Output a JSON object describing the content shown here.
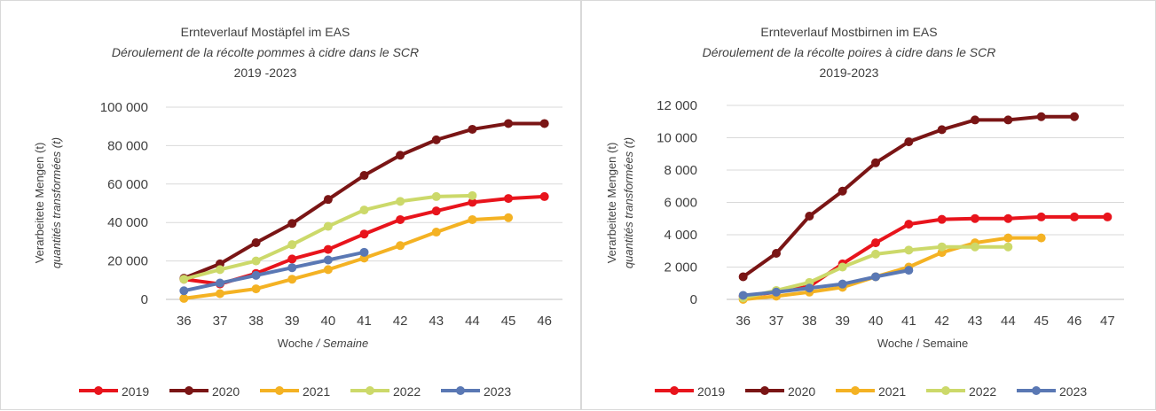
{
  "chart_data": [
    {
      "type": "line",
      "title": "Ernteverlauf Mostäpfel im EAS",
      "subtitle": "Déroulement de la récolte pommes à cidre dans le SCR",
      "years_label": "2019 -2023",
      "xlabel": "Woche",
      "xlabel_italic": "Semaine",
      "ylabel": "Verarbeitete Mengen (t)",
      "ylabel_italic": "quantités transformées (t)",
      "categories": [
        "36",
        "37",
        "38",
        "39",
        "40",
        "41",
        "42",
        "43",
        "44",
        "45",
        "46"
      ],
      "ylim": [
        0,
        100000
      ],
      "yticks": [
        0,
        20000,
        40000,
        60000,
        80000,
        100000
      ],
      "ytick_labels": [
        "0",
        "20 000",
        "40 000",
        "60 000",
        "80 000",
        "100 000"
      ],
      "grid": true,
      "legend": "bottom",
      "series": [
        {
          "name": "2019",
          "color": "#e8141c",
          "values": [
            10500,
            8000,
            13500,
            21000,
            26000,
            34000,
            41500,
            46000,
            50500,
            52500,
            53500
          ]
        },
        {
          "name": "2020",
          "color": "#7a1515",
          "values": [
            11000,
            18500,
            29500,
            39500,
            52000,
            64500,
            75000,
            83000,
            88500,
            91500,
            91500
          ]
        },
        {
          "name": "2021",
          "color": "#f4b223",
          "values": [
            500,
            3000,
            5500,
            10500,
            15500,
            21500,
            28000,
            35000,
            41500,
            42500,
            null
          ]
        },
        {
          "name": "2022",
          "color": "#ccd96a",
          "values": [
            10500,
            15500,
            20000,
            28500,
            38000,
            46500,
            51000,
            53500,
            54000,
            null,
            null
          ]
        },
        {
          "name": "2023",
          "color": "#5a78b4",
          "values": [
            4500,
            8500,
            12500,
            16500,
            20500,
            24500,
            null,
            null,
            null,
            null,
            null
          ]
        }
      ]
    },
    {
      "type": "line",
      "title": "Ernteverlauf Mostbirnen im EAS",
      "subtitle": "Déroulement de la récolte poires à cidre dans le SCR",
      "years_label": "2019-2023",
      "xlabel": "Woche / Semaine",
      "xlabel_italic": "",
      "ylabel": "Verarbeitete Mengen (t)",
      "ylabel_italic": "quantités transformées (t)",
      "categories": [
        "36",
        "37",
        "38",
        "39",
        "40",
        "41",
        "42",
        "43",
        "44",
        "45",
        "46",
        "47"
      ],
      "ylim": [
        0,
        12000
      ],
      "yticks": [
        0,
        2000,
        4000,
        6000,
        8000,
        10000,
        12000
      ],
      "ytick_labels": [
        "0",
        "2 000",
        "4 000",
        "6 000",
        "8 000",
        "10 000",
        "12 000"
      ],
      "grid": true,
      "legend": "bottom",
      "series": [
        {
          "name": "2019",
          "color": "#e8141c",
          "values": [
            200,
            450,
            800,
            2200,
            3500,
            4650,
            4950,
            5000,
            5000,
            5100,
            5100,
            5100
          ]
        },
        {
          "name": "2020",
          "color": "#7a1515",
          "values": [
            1400,
            2850,
            5150,
            6700,
            8450,
            9750,
            10500,
            11100,
            11100,
            11300,
            11300,
            null
          ]
        },
        {
          "name": "2021",
          "color": "#f4b223",
          "values": [
            0,
            200,
            450,
            750,
            1400,
            2000,
            2900,
            3500,
            3800,
            3800,
            null,
            null
          ]
        },
        {
          "name": "2022",
          "color": "#ccd96a",
          "values": [
            100,
            550,
            1050,
            2000,
            2800,
            3050,
            3250,
            3250,
            3250,
            null,
            null,
            null
          ]
        },
        {
          "name": "2023",
          "color": "#5a78b4",
          "values": [
            250,
            450,
            700,
            950,
            1400,
            1800,
            null,
            null,
            null,
            null,
            null,
            null
          ]
        }
      ]
    }
  ]
}
